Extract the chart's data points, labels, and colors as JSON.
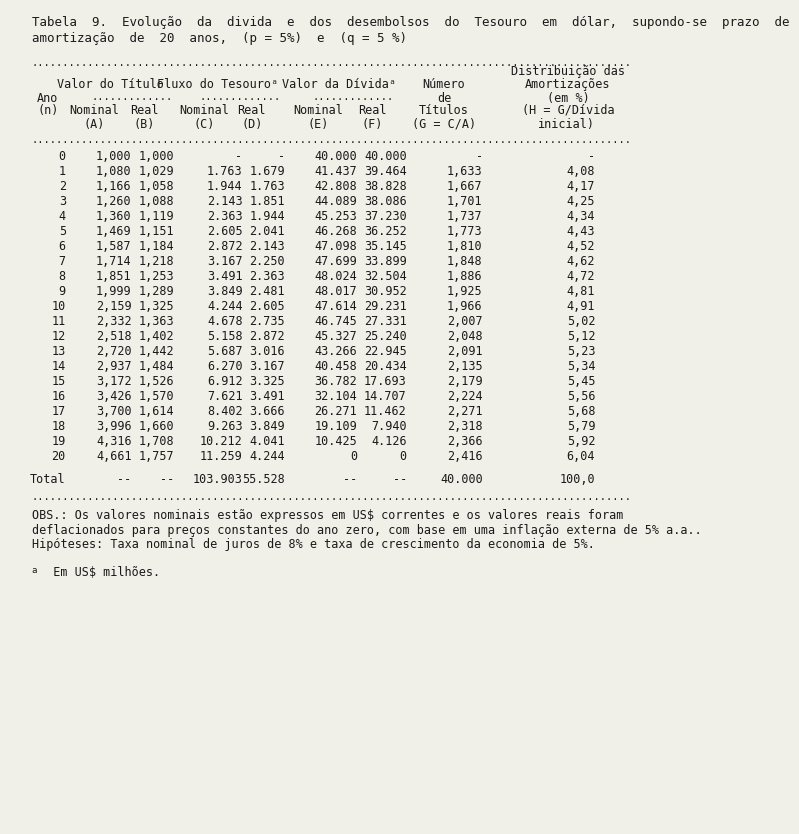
{
  "title_line1": "Tabela  9.  Evolução  da  divida  e  dos  desembolsos  do  Tesouro  em  dólar,  supondo-se  prazo  de",
  "title_line2": "amortização  de  20  anos,  (p = 5%)  e  (q = 5 %)",
  "col_group1": "Valor do Título",
  "col_group2": "Fluxo do Tesouroᵃ",
  "col_group3": "Valor da Dívidaᵃ",
  "rows": [
    [
      "0",
      "1,000",
      "1,000",
      "-",
      "-",
      "40.000",
      "40.000",
      "-",
      "-"
    ],
    [
      "1",
      "1,080",
      "1,029",
      "1.763",
      "1.679",
      "41.437",
      "39.464",
      "1,633",
      "4,08"
    ],
    [
      "2",
      "1,166",
      "1,058",
      "1.944",
      "1.763",
      "42.808",
      "38.828",
      "1,667",
      "4,17"
    ],
    [
      "3",
      "1,260",
      "1,088",
      "2.143",
      "1.851",
      "44.089",
      "38.086",
      "1,701",
      "4,25"
    ],
    [
      "4",
      "1,360",
      "1,119",
      "2.363",
      "1.944",
      "45.253",
      "37.230",
      "1,737",
      "4,34"
    ],
    [
      "5",
      "1,469",
      "1,151",
      "2.605",
      "2.041",
      "46.268",
      "36.252",
      "1,773",
      "4,43"
    ],
    [
      "6",
      "1,587",
      "1,184",
      "2.872",
      "2.143",
      "47.098",
      "35.145",
      "1,810",
      "4,52"
    ],
    [
      "7",
      "1,714",
      "1,218",
      "3.167",
      "2.250",
      "47.699",
      "33.899",
      "1,848",
      "4,62"
    ],
    [
      "8",
      "1,851",
      "1,253",
      "3.491",
      "2.363",
      "48.024",
      "32.504",
      "1,886",
      "4,72"
    ],
    [
      "9",
      "1,999",
      "1,289",
      "3.849",
      "2.481",
      "48.017",
      "30.952",
      "1,925",
      "4,81"
    ],
    [
      "10",
      "2,159",
      "1,325",
      "4.244",
      "2.605",
      "47.614",
      "29.231",
      "1,966",
      "4,91"
    ],
    [
      "11",
      "2,332",
      "1,363",
      "4.678",
      "2.735",
      "46.745",
      "27.331",
      "2,007",
      "5,02"
    ],
    [
      "12",
      "2,518",
      "1,402",
      "5.158",
      "2.872",
      "45.327",
      "25.240",
      "2,048",
      "5,12"
    ],
    [
      "13",
      "2,720",
      "1,442",
      "5.687",
      "3.016",
      "43.266",
      "22.945",
      "2,091",
      "5,23"
    ],
    [
      "14",
      "2,937",
      "1,484",
      "6.270",
      "3.167",
      "40.458",
      "20.434",
      "2,135",
      "5,34"
    ],
    [
      "15",
      "3,172",
      "1,526",
      "6.912",
      "3.325",
      "36.782",
      "17.693",
      "2,179",
      "5,45"
    ],
    [
      "16",
      "3,426",
      "1,570",
      "7.621",
      "3.491",
      "32.104",
      "14.707",
      "2,224",
      "5,56"
    ],
    [
      "17",
      "3,700",
      "1,614",
      "8.402",
      "3.666",
      "26.271",
      "11.462",
      "2,271",
      "5,68"
    ],
    [
      "18",
      "3,996",
      "1,660",
      "9.263",
      "3.849",
      "19.109",
      "7.940",
      "2,318",
      "5,79"
    ],
    [
      "19",
      "4,316",
      "1,708",
      "10.212",
      "4.041",
      "10.425",
      "4.126",
      "2,366",
      "5,92"
    ],
    [
      "20",
      "4,661",
      "1,757",
      "11.259",
      "4.244",
      "0",
      "0",
      "2,416",
      "6,04"
    ]
  ],
  "total_row": [
    "Total",
    "--",
    "--",
    "103.903",
    "55.528",
    "--",
    "--",
    "40.000",
    "100,0"
  ],
  "obs_text": "OBS.: Os valores nominais estão expressos em US$ correntes e os valores reais foram\ndeflacionados para preços constantes do ano zero, com base em uma inflação externa de 5% a.a..\nHipóteses: Taxa nominal de juros de 8% e taxa de crescimento da economia de 5%.",
  "footnote_super": "a",
  "footnote_text": "  Em US$ milhões.",
  "bg_color": "#f0efe8",
  "text_color": "#1a1a1a",
  "font_size": 8.5,
  "title_font_size": 9.0
}
